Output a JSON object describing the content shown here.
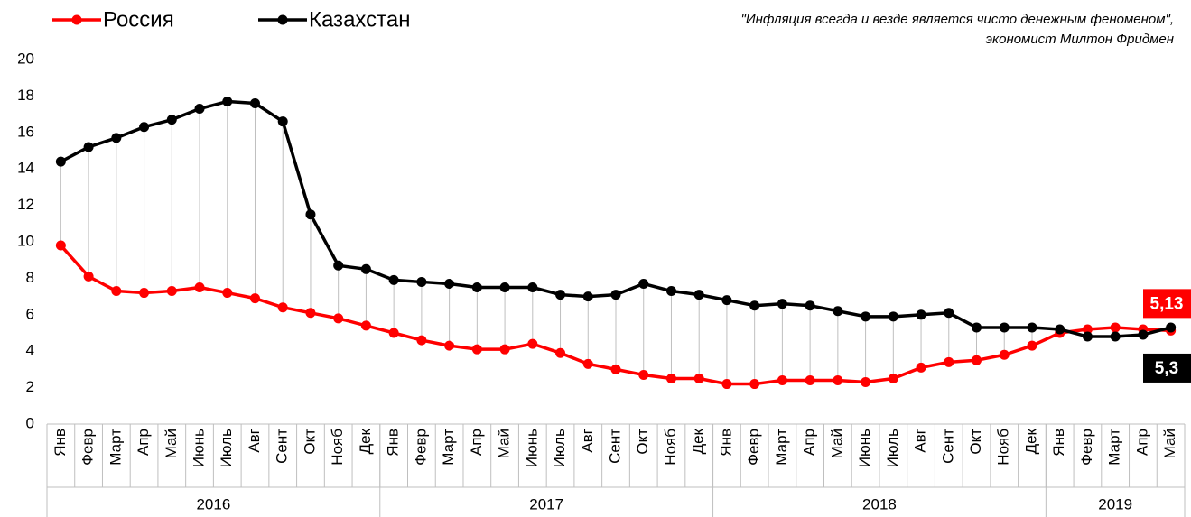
{
  "chart_data": {
    "type": "line",
    "annotation": [
      "\"Инфляция всегда и везде является чисто денежным феноменом\",",
      "экономист Милтон Фридмен"
    ],
    "categories": [
      "Янв",
      "Февр",
      "Март",
      "Апр",
      "Май",
      "Июнь",
      "Июль",
      "Авг",
      "Сент",
      "Окт",
      "Нояб",
      "Дек",
      "Янв",
      "Февр",
      "Март",
      "Апр",
      "Май",
      "Июнь",
      "Июль",
      "Авг",
      "Сент",
      "Окт",
      "Нояб",
      "Дек",
      "Янв",
      "Февр",
      "Март",
      "Апр",
      "Май",
      "Июнь",
      "Июль",
      "Авг",
      "Сент",
      "Окт",
      "Нояб",
      "Дек",
      "Янв",
      "Февр",
      "Март",
      "Апр",
      "Май"
    ],
    "years": [
      {
        "label": "2016",
        "count": 12
      },
      {
        "label": "2017",
        "count": 12
      },
      {
        "label": "2018",
        "count": 12
      },
      {
        "label": "2019",
        "count": 5
      }
    ],
    "series": [
      {
        "name": "Россия",
        "color": "#ff0000",
        "values": [
          9.8,
          8.1,
          7.3,
          7.2,
          7.3,
          7.5,
          7.2,
          6.9,
          6.4,
          6.1,
          5.8,
          5.4,
          5.0,
          4.6,
          4.3,
          4.1,
          4.1,
          4.4,
          3.9,
          3.3,
          3.0,
          2.7,
          2.5,
          2.5,
          2.2,
          2.2,
          2.4,
          2.4,
          2.4,
          2.3,
          2.5,
          3.1,
          3.4,
          3.5,
          3.8,
          4.3,
          5.0,
          5.2,
          5.3,
          5.2,
          5.13
        ],
        "value_labels": [
          null,
          null,
          null,
          null,
          null,
          null,
          null,
          null,
          null,
          null,
          null,
          null,
          null,
          null,
          null,
          null,
          null,
          null,
          null,
          null,
          null,
          null,
          null,
          null,
          null,
          null,
          null,
          null,
          null,
          null,
          null,
          null,
          null,
          null,
          null,
          null,
          null,
          null,
          null,
          null,
          "5,13"
        ]
      },
      {
        "name": "Казахстан",
        "color": "#000000",
        "values": [
          14.4,
          15.2,
          15.7,
          16.3,
          16.7,
          17.3,
          17.7,
          17.6,
          16.6,
          11.5,
          8.7,
          8.5,
          7.9,
          7.8,
          7.7,
          7.5,
          7.5,
          7.5,
          7.1,
          7.0,
          7.1,
          7.7,
          7.3,
          7.1,
          6.8,
          6.5,
          6.6,
          6.5,
          6.2,
          5.9,
          5.9,
          6.0,
          6.1,
          5.3,
          5.3,
          5.3,
          5.2,
          4.8,
          4.8,
          4.9,
          5.3
        ],
        "value_labels": [
          null,
          null,
          null,
          null,
          null,
          null,
          null,
          null,
          null,
          null,
          null,
          null,
          null,
          null,
          null,
          null,
          null,
          null,
          null,
          null,
          null,
          null,
          null,
          null,
          null,
          null,
          null,
          null,
          null,
          null,
          null,
          null,
          null,
          null,
          null,
          null,
          null,
          null,
          null,
          null,
          "5,3"
        ]
      }
    ],
    "ylim": [
      0,
      20
    ],
    "yticks": [
      0,
      2,
      4,
      6,
      8,
      10,
      12,
      14,
      16,
      18,
      20
    ],
    "grid": false,
    "drop_lines": true
  }
}
